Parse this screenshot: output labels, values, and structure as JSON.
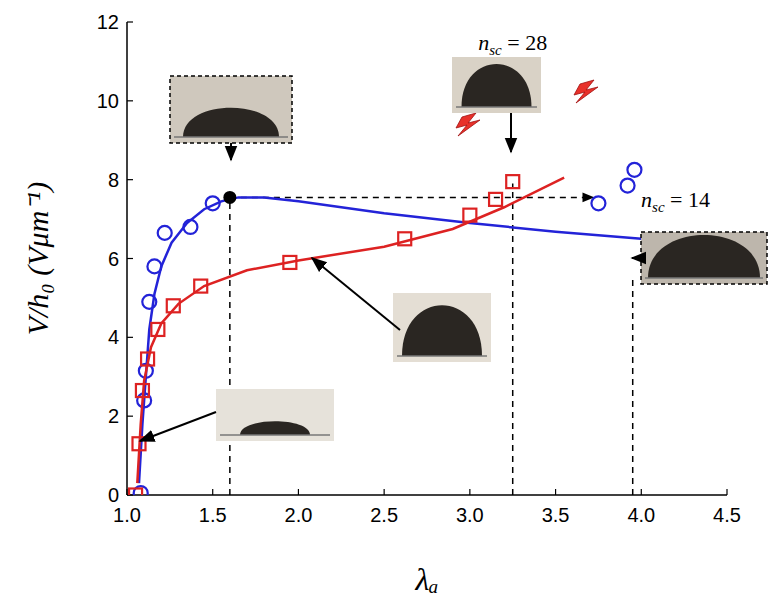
{
  "chart_data": {
    "type": "scatter",
    "x_label": "λₐ",
    "y_label": "V/h₀ (Vμm⁻¹)",
    "xlim": [
      1.0,
      4.5
    ],
    "ylim": [
      0,
      12
    ],
    "xticks": [
      {
        "value": 1.0,
        "label": "1.0"
      },
      1.5,
      {
        "value": 2.0,
        "label": "2.0"
      },
      2.5,
      {
        "value": 3.0,
        "label": "3.0"
      },
      3.5,
      {
        "value": 4.0,
        "label": "4.0"
      },
      4.5
    ],
    "yticks": [
      0,
      2,
      4,
      6,
      8,
      10,
      12
    ],
    "grid": false,
    "series": [
      {
        "type": "line",
        "color": "#2323d8",
        "line_style": "solid",
        "x": [
          1.07,
          1.09,
          1.11,
          1.13,
          1.16,
          1.2,
          1.26,
          1.35,
          1.45,
          1.55,
          1.65,
          1.8,
          2.0,
          2.5,
          3.0,
          3.5,
          4.0
        ],
        "values": [
          0.3,
          1.8,
          3.0,
          4.2,
          5.1,
          5.8,
          6.4,
          6.9,
          7.25,
          7.45,
          7.55,
          7.55,
          7.45,
          7.15,
          6.9,
          6.68,
          6.5
        ]
      },
      {
        "type": "scatter",
        "color": "#2323d8",
        "marker": "circle",
        "x": [
          1.08,
          1.1,
          1.11,
          1.13,
          1.16,
          1.22,
          1.37,
          1.5,
          3.75,
          3.92,
          3.96
        ],
        "values": [
          0.05,
          2.4,
          3.15,
          4.9,
          5.8,
          6.65,
          6.8,
          7.4,
          7.4,
          7.85,
          8.25
        ]
      },
      {
        "type": "line",
        "color": "#dd2222",
        "line_style": "solid",
        "x": [
          1.06,
          1.08,
          1.1,
          1.14,
          1.2,
          1.3,
          1.45,
          1.7,
          2.0,
          2.5,
          2.9,
          3.2,
          3.55
        ],
        "values": [
          0.3,
          1.8,
          2.9,
          3.75,
          4.35,
          4.85,
          5.3,
          5.7,
          5.95,
          6.3,
          6.75,
          7.3,
          8.05
        ]
      },
      {
        "type": "scatter",
        "color": "#dd2222",
        "marker": "square",
        "x": [
          1.05,
          1.07,
          1.09,
          1.12,
          1.18,
          1.27,
          1.43,
          1.95,
          2.62,
          3.0,
          3.15,
          3.25
        ],
        "values": [
          0.0,
          1.3,
          2.65,
          3.45,
          4.2,
          4.8,
          5.3,
          5.9,
          6.5,
          7.1,
          7.5,
          7.95
        ]
      }
    ],
    "marked_point": {
      "x": 1.6,
      "y": 7.55
    },
    "vlines": [
      {
        "x": 1.6,
        "ymax": 7.55
      },
      {
        "x": 3.25,
        "ymax": 7.9
      },
      {
        "x": 3.95,
        "ymax": 5.5
      }
    ],
    "hline": {
      "y": 7.55,
      "xmin": 1.6,
      "xmax": 3.72
    },
    "annotations": [
      {
        "text": "n",
        "subscript": "sc",
        "suffix": " = 28",
        "x": 3.25,
        "y": 11.3
      },
      {
        "text": "n",
        "subscript": "sc",
        "suffix": " = 14",
        "x": 4.2,
        "y": 7.3
      }
    ]
  }
}
